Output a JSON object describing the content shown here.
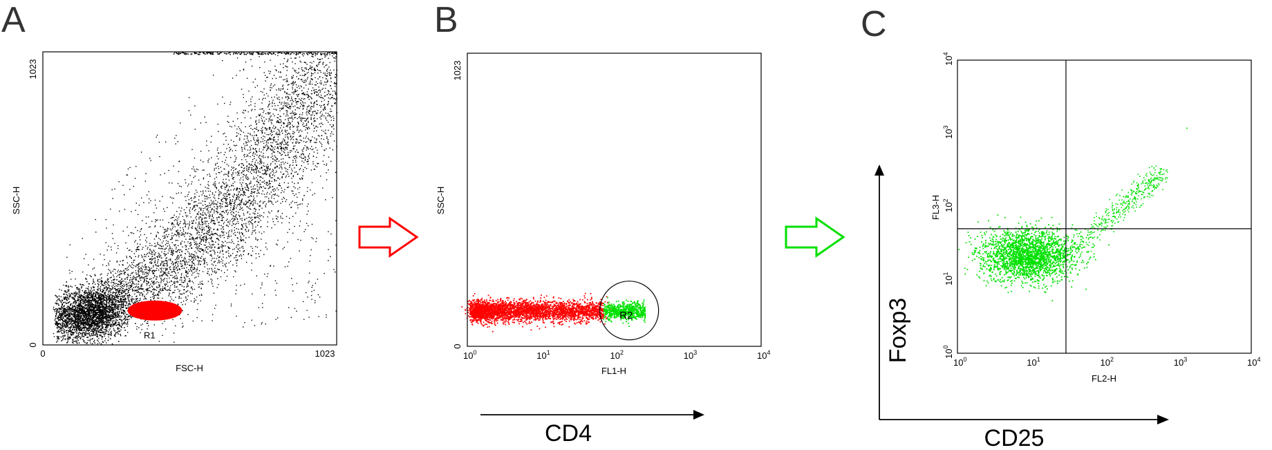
{
  "colors": {
    "ungated": "#000000",
    "gate_r1": "#ff0000",
    "gate_r2": "#00e000",
    "arrow_1": "#ff0000",
    "arrow_2": "#00e000"
  },
  "chart_data": [
    {
      "type": "scatter",
      "panel_letter": "A",
      "xlabel": "FSC-H",
      "ylabel": "SSC-H",
      "xlim": [
        0,
        1023
      ],
      "ylim": [
        0,
        1023
      ],
      "x_ticks": [
        "0",
        "1023"
      ],
      "y_ticks": [
        "0",
        "1023"
      ],
      "gate_label": "R1",
      "gate_ellipse": {
        "cx": 390,
        "cy": 120,
        "rx": 95,
        "ry": 35
      },
      "series": [
        {
          "color": "#000000",
          "description_points": "dense diagonal cloud from low FSC/SSC rising toward high FSC/SSC"
        },
        {
          "color": "#ff0000",
          "gate": "R1"
        }
      ]
    },
    {
      "type": "scatter",
      "panel_letter": "B",
      "xlabel": "FL1-H",
      "ylabel": "SSC-H",
      "x_scale": "log",
      "xlim": [
        1,
        10000
      ],
      "ylim": [
        0,
        1023
      ],
      "x_ticks": [
        {
          "base": "10",
          "exp": "0"
        },
        {
          "base": "10",
          "exp": "1"
        },
        {
          "base": "10",
          "exp": "2"
        },
        {
          "base": "10",
          "exp": "3"
        },
        {
          "base": "10",
          "exp": "4"
        }
      ],
      "y_ticks": [
        "0",
        "1023"
      ],
      "gate_label": "R2",
      "gate_circle": {
        "x": 160,
        "y": 125,
        "r_decades": 0.4
      },
      "marker_label": "CD4",
      "series": [
        {
          "color": "#ff0000",
          "x_range": [
            1.2,
            70
          ],
          "y_center": 125
        },
        {
          "color": "#00e000",
          "gate": "R2",
          "x_range": [
            70,
            260
          ],
          "y_center": 125
        }
      ]
    },
    {
      "type": "scatter",
      "panel_letter": "C",
      "xlabel": "FL2-H",
      "ylabel": "FL3-H",
      "x_scale": "log",
      "y_scale": "log",
      "xlim": [
        1,
        10000
      ],
      "ylim": [
        1,
        10000
      ],
      "x_ticks": [
        {
          "base": "10",
          "exp": "0"
        },
        {
          "base": "10",
          "exp": "1"
        },
        {
          "base": "10",
          "exp": "2"
        },
        {
          "base": "10",
          "exp": "3"
        },
        {
          "base": "10",
          "exp": "4"
        }
      ],
      "y_ticks": [
        {
          "base": "10",
          "exp": "0"
        },
        {
          "base": "10",
          "exp": "1"
        },
        {
          "base": "10",
          "exp": "2"
        },
        {
          "base": "10",
          "exp": "3"
        },
        {
          "base": "10",
          "exp": "4"
        }
      ],
      "quadrant_lines": {
        "x": 30,
        "y": 50
      },
      "marker_x_label": "CD25",
      "marker_y_label": "Foxp3",
      "series": [
        {
          "color": "#00e000",
          "cluster_center": [
            9,
            22
          ],
          "trail_to": [
            600,
            300
          ]
        }
      ]
    }
  ]
}
